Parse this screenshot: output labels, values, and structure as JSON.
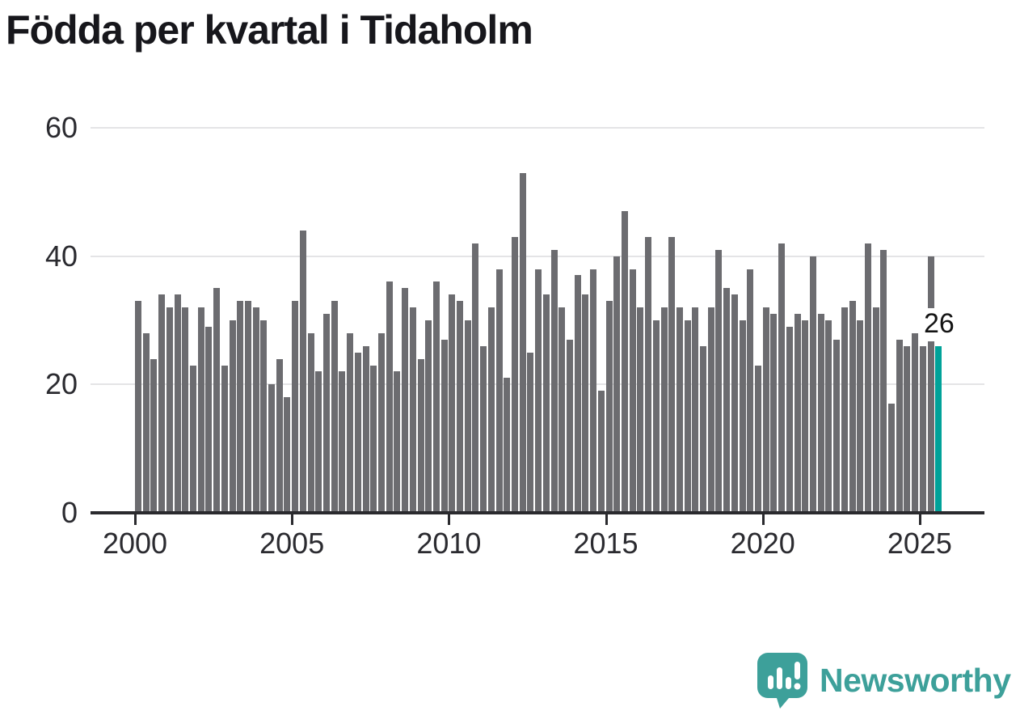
{
  "title": "Födda per kvartal i Tidaholm",
  "annotation": {
    "text": "26"
  },
  "logo": {
    "text": "Newsworthy",
    "color": "#3da09a"
  },
  "colors": {
    "bar": "#6c6c70",
    "highlight": "#00a299",
    "gridline": "#e4e4e6",
    "axis": "#2a2a2e",
    "title_text": "#17171c",
    "tick_text": "#2b2b30"
  },
  "chart_data": {
    "type": "bar",
    "title": "Födda per kvartal i Tidaholm",
    "xlabel": "",
    "ylabel": "",
    "ylim": [
      0,
      60
    ],
    "grid": "horizontal",
    "grid_values": [
      20,
      40,
      60
    ],
    "y_ticks": [
      60,
      40,
      20,
      0
    ],
    "x_tick_labels": [
      "2000",
      "2005",
      "2010",
      "2015",
      "2020",
      "2025"
    ],
    "x_tick_indices": [
      0,
      20,
      40,
      60,
      80,
      100
    ],
    "bar_color": "#6c6c70",
    "highlight_color": "#00a299",
    "highlight_index": 102,
    "highlight_label": "26",
    "x": [
      "2000 Q1",
      "2000 Q2",
      "2000 Q3",
      "2000 Q4",
      "2001 Q1",
      "2001 Q2",
      "2001 Q3",
      "2001 Q4",
      "2002 Q1",
      "2002 Q2",
      "2002 Q3",
      "2002 Q4",
      "2003 Q1",
      "2003 Q2",
      "2003 Q3",
      "2003 Q4",
      "2004 Q1",
      "2004 Q2",
      "2004 Q3",
      "2004 Q4",
      "2005 Q1",
      "2005 Q2",
      "2005 Q3",
      "2005 Q4",
      "2006 Q1",
      "2006 Q2",
      "2006 Q3",
      "2006 Q4",
      "2007 Q1",
      "2007 Q2",
      "2007 Q3",
      "2007 Q4",
      "2008 Q1",
      "2008 Q2",
      "2008 Q3",
      "2008 Q4",
      "2009 Q1",
      "2009 Q2",
      "2009 Q3",
      "2009 Q4",
      "2010 Q1",
      "2010 Q2",
      "2010 Q3",
      "2010 Q4",
      "2011 Q1",
      "2011 Q2",
      "2011 Q3",
      "2011 Q4",
      "2012 Q1",
      "2012 Q2",
      "2012 Q3",
      "2012 Q4",
      "2013 Q1",
      "2013 Q2",
      "2013 Q3",
      "2013 Q4",
      "2014 Q1",
      "2014 Q2",
      "2014 Q3",
      "2014 Q4",
      "2015 Q1",
      "2015 Q2",
      "2015 Q3",
      "2015 Q4",
      "2016 Q1",
      "2016 Q2",
      "2016 Q3",
      "2016 Q4",
      "2017 Q1",
      "2017 Q2",
      "2017 Q3",
      "2017 Q4",
      "2018 Q1",
      "2018 Q2",
      "2018 Q3",
      "2018 Q4",
      "2019 Q1",
      "2019 Q2",
      "2019 Q3",
      "2019 Q4",
      "2020 Q1",
      "2020 Q2",
      "2020 Q3",
      "2020 Q4",
      "2021 Q1",
      "2021 Q2",
      "2021 Q3",
      "2021 Q4",
      "2022 Q1",
      "2022 Q2",
      "2022 Q3",
      "2022 Q4",
      "2023 Q1",
      "2023 Q2",
      "2023 Q3",
      "2023 Q4",
      "2024 Q1",
      "2024 Q2",
      "2024 Q3",
      "2024 Q4",
      "2025 Q1",
      "2025 Q2",
      "2025 Q3"
    ],
    "values": [
      33,
      28,
      24,
      34,
      32,
      34,
      32,
      23,
      32,
      29,
      35,
      23,
      30,
      33,
      33,
      32,
      30,
      20,
      24,
      18,
      33,
      44,
      28,
      22,
      31,
      33,
      22,
      28,
      25,
      26,
      23,
      28,
      36,
      22,
      35,
      32,
      24,
      30,
      36,
      27,
      34,
      33,
      30,
      42,
      26,
      32,
      38,
      21,
      43,
      53,
      25,
      38,
      34,
      41,
      32,
      27,
      37,
      34,
      38,
      19,
      33,
      40,
      47,
      38,
      32,
      43,
      30,
      32,
      43,
      32,
      30,
      32,
      26,
      32,
      41,
      35,
      34,
      30,
      38,
      23,
      32,
      31,
      42,
      29,
      31,
      30,
      40,
      31,
      30,
      27,
      32,
      33,
      30,
      42,
      32,
      41,
      17,
      27,
      26,
      28,
      26,
      40,
      26
    ]
  }
}
